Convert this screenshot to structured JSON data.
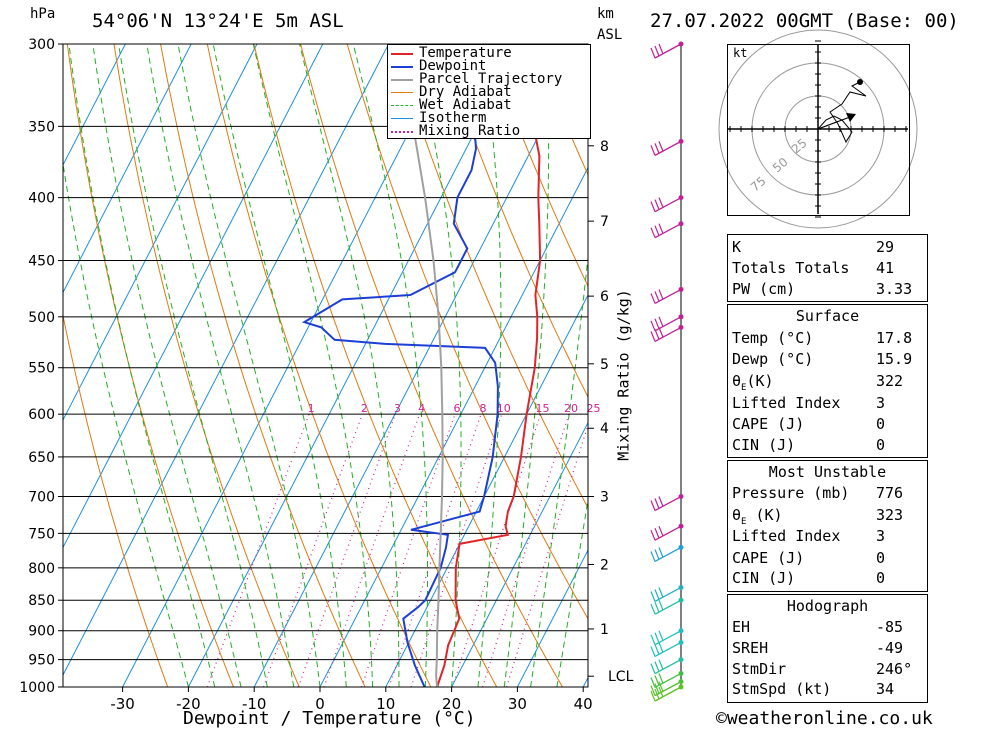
{
  "header": {
    "pressure_unit": "hPa",
    "location": "54°06'N  13°24'E  5m  ASL",
    "km_unit": "km",
    "km_sub": "ASL",
    "datetime": "27.07.2022  00GMT  (Base: 00)",
    "copyright": "©weatheronline.co.uk"
  },
  "chart_data": {
    "type": "line",
    "title": "",
    "xlabel": "Dewpoint / Temperature (°C)",
    "ylabel": "hPa",
    "secondary_ylabel": "Mixing Ratio (g/kg)",
    "xlim": [
      -40,
      40
    ],
    "pressure_levels": [
      300,
      350,
      400,
      450,
      500,
      550,
      600,
      650,
      700,
      750,
      800,
      850,
      900,
      950,
      1000
    ],
    "temperature_ticks": [
      -30,
      -20,
      -10,
      0,
      10,
      20,
      30,
      40
    ],
    "km_ticks": [
      {
        "label": "8",
        "p": 363
      },
      {
        "label": "7",
        "p": 418
      },
      {
        "label": "6",
        "p": 481
      },
      {
        "label": "5",
        "p": 546
      },
      {
        "label": "4",
        "p": 616
      },
      {
        "label": "3",
        "p": 700
      },
      {
        "label": "2",
        "p": 795
      },
      {
        "label": "1",
        "p": 897
      }
    ],
    "lcl": {
      "label": "LCL",
      "p": 980
    },
    "mixing_ratio_labels": [
      "1",
      "2",
      "3",
      "4",
      "6",
      "8",
      "10",
      "15",
      "20",
      "25"
    ],
    "mixing_ratio_values": [
      1,
      2,
      3,
      4,
      6,
      8,
      10,
      15,
      20,
      25
    ],
    "grid": true,
    "legend_position": "top-right",
    "legend": [
      {
        "label": "Temperature",
        "color": "#e0242a",
        "style": "solid"
      },
      {
        "label": "Dewpoint",
        "color": "#1d3fd6",
        "style": "solid"
      },
      {
        "label": "Parcel Trajectory",
        "color": "#a0a0a0",
        "style": "solid"
      },
      {
        "label": "Dry Adiabat",
        "color": "#e07a10",
        "style": "solid"
      },
      {
        "label": "Wet Adiabat",
        "color": "#22b022",
        "style": "dashed"
      },
      {
        "label": "Isotherm",
        "color": "#1e90e0",
        "style": "solid"
      },
      {
        "label": "Mixing Ratio",
        "color": "#d0209a",
        "style": "dotted"
      }
    ],
    "series": [
      {
        "name": "Temperature",
        "color": "#e0242a",
        "points": [
          [
            1000,
            17.8
          ],
          [
            960,
            17.2
          ],
          [
            925,
            16.2
          ],
          [
            880,
            15.8
          ],
          [
            850,
            13.8
          ],
          [
            800,
            11.3
          ],
          [
            765,
            10.0
          ],
          [
            752,
            16.6
          ],
          [
            740,
            15.6
          ],
          [
            720,
            14.8
          ],
          [
            700,
            14.5
          ],
          [
            650,
            12.5
          ],
          [
            600,
            10.0
          ],
          [
            550,
            7.6
          ],
          [
            520,
            5.6
          ],
          [
            500,
            4.0
          ],
          [
            480,
            2.0
          ],
          [
            450,
            0.0
          ],
          [
            420,
            -3.0
          ],
          [
            400,
            -5.2
          ],
          [
            370,
            -8.3
          ],
          [
            350,
            -11.5
          ],
          [
            320,
            -15.2
          ],
          [
            300,
            -19.2
          ]
        ]
      },
      {
        "name": "Dewpoint",
        "color": "#1d3fd6",
        "points": [
          [
            1000,
            15.9
          ],
          [
            960,
            12.7
          ],
          [
            920,
            9.8
          ],
          [
            880,
            7.3
          ],
          [
            860,
            8.7
          ],
          [
            850,
            9.2
          ],
          [
            800,
            9.0
          ],
          [
            770,
            8.2
          ],
          [
            752,
            7.5
          ],
          [
            745,
            1.5
          ],
          [
            720,
            10.5
          ],
          [
            700,
            10.0
          ],
          [
            650,
            8.2
          ],
          [
            600,
            5.6
          ],
          [
            570,
            3.5
          ],
          [
            545,
            1.2
          ],
          [
            530,
            -1.5
          ],
          [
            526,
            -17.0
          ],
          [
            522,
            -25.0
          ],
          [
            510,
            -28.0
          ],
          [
            505,
            -31.0
          ],
          [
            484,
            -27.0
          ],
          [
            480,
            -17.0
          ],
          [
            460,
            -12.0
          ],
          [
            440,
            -12.0
          ],
          [
            420,
            -16.0
          ],
          [
            400,
            -17.5
          ],
          [
            380,
            -17.5
          ],
          [
            365,
            -18.5
          ],
          [
            350,
            -20.5
          ],
          [
            330,
            -23.5
          ],
          [
            310,
            -26.5
          ],
          [
            300,
            -29.0
          ]
        ]
      },
      {
        "name": "Parcel Trajectory",
        "color": "#a0a0a0",
        "points": [
          [
            1000,
            17.8
          ],
          [
            980,
            16.8
          ],
          [
            950,
            15.6
          ],
          [
            900,
            13.4
          ],
          [
            850,
            11.2
          ],
          [
            800,
            8.8
          ],
          [
            750,
            6.3
          ],
          [
            700,
            3.6
          ],
          [
            650,
            0.6
          ],
          [
            600,
            -2.8
          ],
          [
            550,
            -6.6
          ],
          [
            500,
            -11.0
          ],
          [
            450,
            -16.2
          ],
          [
            400,
            -22.4
          ],
          [
            350,
            -29.8
          ],
          [
            320,
            -35.0
          ],
          [
            310,
            -37.0
          ]
        ]
      }
    ]
  },
  "hodograph": {
    "unit": "kt",
    "ring_labels": [
      "25",
      "50",
      "75"
    ]
  },
  "wind_barbs": [
    {
      "p": 300,
      "color": "#c0209a"
    },
    {
      "p": 360,
      "color": "#c0209a"
    },
    {
      "p": 400,
      "color": "#c0209a"
    },
    {
      "p": 420,
      "color": "#c0209a"
    },
    {
      "p": 475,
      "color": "#c0209a"
    },
    {
      "p": 500,
      "color": "#c0209a"
    },
    {
      "p": 510,
      "color": "#c0209a"
    },
    {
      "p": 700,
      "color": "#c0209a"
    },
    {
      "p": 740,
      "color": "#c0209a"
    },
    {
      "p": 770,
      "color": "#20a0d0"
    },
    {
      "p": 830,
      "color": "#20b0c0"
    },
    {
      "p": 850,
      "color": "#20c0a0"
    },
    {
      "p": 900,
      "color": "#20c0c0"
    },
    {
      "p": 920,
      "color": "#20c0c0"
    },
    {
      "p": 950,
      "color": "#20c0a0"
    },
    {
      "p": 975,
      "color": "#40c040"
    },
    {
      "p": 990,
      "color": "#50c030"
    },
    {
      "p": 1000,
      "color": "#60c020"
    }
  ],
  "indices": {
    "rows": [
      {
        "label": "K",
        "value": "29"
      },
      {
        "label": "Totals Totals",
        "value": "41"
      },
      {
        "label": "PW (cm)",
        "value": "3.33"
      }
    ]
  },
  "surface": {
    "title": "Surface",
    "temp_label": "Temp (°C)",
    "temp_value": "17.8",
    "dewp_label": "Dewp (°C)",
    "dewp_value": "15.9",
    "theta_symbol": "θ",
    "theta_sub": "E",
    "theta_unit": "(K)",
    "theta_value": "322",
    "li_label": "Lifted Index",
    "li_value": "3",
    "cape_label": "CAPE (J)",
    "cape_value": "0",
    "cin_label": "CIN (J)",
    "cin_value": "0"
  },
  "most_unstable": {
    "title": "Most Unstable",
    "pressure_label": "Pressure (mb)",
    "pressure_value": "776",
    "theta_symbol": "θ",
    "theta_sub": "E",
    "theta_unit": " (K)",
    "theta_value": "323",
    "li_label": "Lifted Index",
    "li_value": "3",
    "cape_label": "CAPE (J)",
    "cape_value": "0",
    "cin_label": "CIN (J)",
    "cin_value": "0"
  },
  "hodo_table": {
    "title": "Hodograph",
    "rows": [
      {
        "label": "EH",
        "value": "-85"
      },
      {
        "label": "SREH",
        "value": "-49"
      },
      {
        "label": "StmDir",
        "value": "246°"
      },
      {
        "label": "StmSpd (kt)",
        "value": "34"
      }
    ]
  }
}
